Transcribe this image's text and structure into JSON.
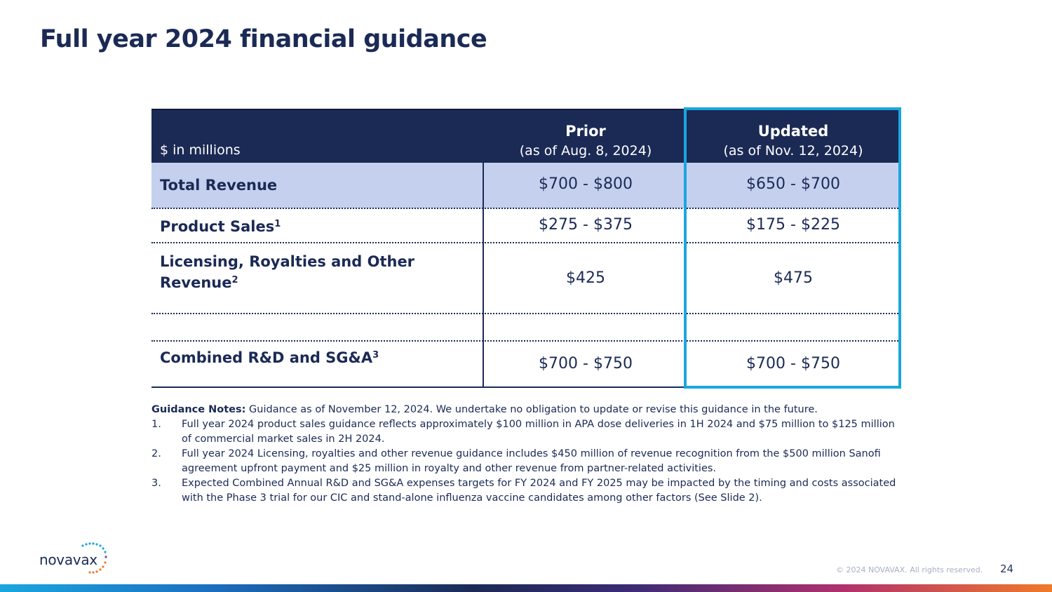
{
  "slide": {
    "title": "Full year 2024 financial guidance",
    "page_number": "24",
    "copyright": "© 2024 NOVAVAX. All rights reserved.",
    "logo_text": "novavax"
  },
  "table": {
    "units_label": "$ in millions",
    "prior": {
      "title": "Prior",
      "subtitle": "(as of Aug. 8, 2024)"
    },
    "updated": {
      "title": "Updated",
      "subtitle": "(as of Nov. 12, 2024)"
    },
    "rows": [
      {
        "label": "Total Revenue",
        "sup": "",
        "prior": "$700 - $800",
        "updated": "$650 - $700"
      },
      {
        "label": "Product Sales",
        "sup": "1",
        "prior": "$275 - $375",
        "updated": "$175 - $225"
      },
      {
        "label_line1": "Licensing, Royalties and Other",
        "label_line2": "Revenue",
        "sup": "2",
        "prior": "$425",
        "updated": "$475"
      },
      {
        "label": "",
        "sup": "",
        "prior": "",
        "updated": ""
      },
      {
        "label": "Combined R&D and SG&A",
        "sup": "3",
        "prior": "$700 - $750",
        "updated": "$700 - $750"
      }
    ],
    "highlight_color": "#1aa6df",
    "header_color": "#1b2a55",
    "total_row_color": "#c5d0ef"
  },
  "notes": {
    "lead_bold": "Guidance Notes:",
    "lead_text": " Guidance as of November 12, 2024. We undertake no obligation to update or revise this guidance in the future.",
    "items": [
      {
        "num": "1.",
        "text": "Full year 2024 product sales guidance reflects approximately $100 million in APA dose deliveries in 1H 2024 and $75 million to $125 million of commercial market sales in 2H 2024."
      },
      {
        "num": "2.",
        "text": "Full year 2024 Licensing, royalties and other revenue guidance includes $450 million of revenue recognition from the $500 million Sanofi agreement upfront payment and $25 million in royalty and other revenue from partner-related activities."
      },
      {
        "num": "3.",
        "text": "Expected Combined Annual R&D and SG&A expenses targets for FY 2024 and FY 2025 may be impacted by the timing and costs associated with the Phase 3 trial for our CIC and stand-alone influenza vaccine candidates among other factors (See Slide 2)."
      }
    ]
  }
}
